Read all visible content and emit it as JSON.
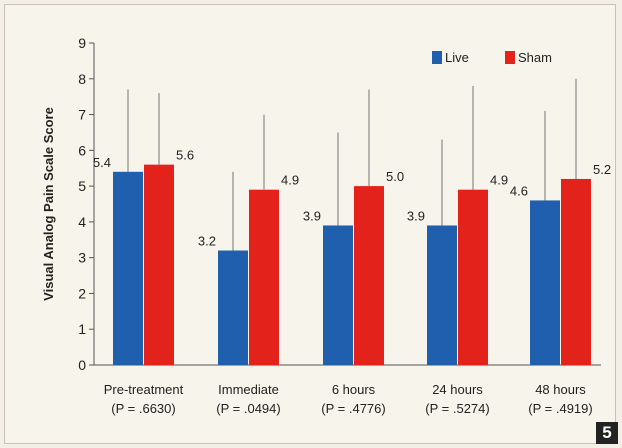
{
  "figure_number": "5",
  "chart_data": {
    "type": "bar",
    "title": "",
    "xlabel": "",
    "ylabel": "Visual Analog Pain Scale Score",
    "ylim": [
      0,
      9
    ],
    "yticks": [
      0,
      1,
      2,
      3,
      4,
      5,
      6,
      7,
      8,
      9
    ],
    "grid": false,
    "legend_position": "top-right",
    "categories": [
      "Pre-treatment",
      "Immediate",
      "6 hours",
      "24 hours",
      "48 hours"
    ],
    "category_sublabels": [
      "(P = .6630)",
      "(P = .0494)",
      "(P = .4776)",
      "(P = .5274)",
      "(P = .4919)"
    ],
    "series": [
      {
        "name": "Live",
        "color": "#1f5fae",
        "values": [
          5.4,
          3.2,
          3.9,
          3.9,
          4.6
        ],
        "value_labels": [
          "5.4",
          "3.2",
          "3.9",
          "3.9",
          "4.6"
        ],
        "error_upper": [
          7.7,
          5.4,
          6.5,
          6.3,
          7.1
        ]
      },
      {
        "name": "Sham",
        "color": "#e3221b",
        "values": [
          5.6,
          4.9,
          5.0,
          4.9,
          5.2
        ],
        "value_labels": [
          "5.6",
          "4.9",
          "5.0",
          "4.9",
          "5.2"
        ],
        "error_upper": [
          7.6,
          7.0,
          7.7,
          7.8,
          8.0
        ]
      }
    ]
  }
}
